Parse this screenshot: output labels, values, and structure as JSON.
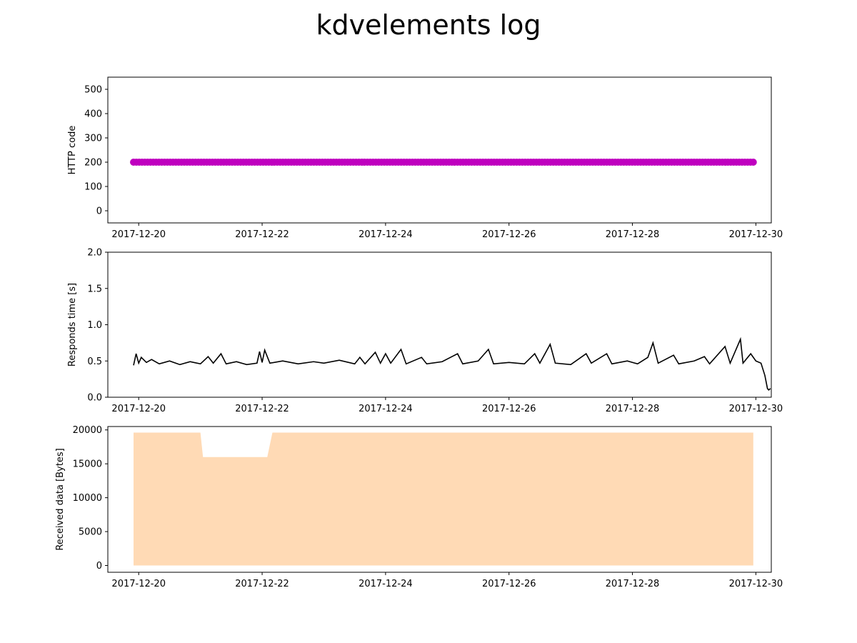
{
  "title": "kdvelements log",
  "chart_data": [
    {
      "type": "scatter",
      "ylabel": "HTTP code",
      "xlabel": "",
      "xlim": [
        "2017-12-19T12:00",
        "2017-12-30T06:00"
      ],
      "ylim": [
        -50,
        550
      ],
      "yticks": [
        0,
        100,
        200,
        300,
        400,
        500
      ],
      "xticks": [
        "2017-12-20",
        "2017-12-22",
        "2017-12-24",
        "2017-12-26",
        "2017-12-28",
        "2017-12-30"
      ],
      "color": "#bf00bf",
      "series": [
        {
          "x_range": [
            "2017-12-19T22:00",
            "2017-12-29T23:00"
          ],
          "value": 200
        }
      ]
    },
    {
      "type": "line",
      "ylabel": "Responds time [s]",
      "xlabel": "",
      "xlim": [
        "2017-12-19T12:00",
        "2017-12-30T06:00"
      ],
      "ylim": [
        0,
        2.0
      ],
      "yticks": [
        0.0,
        0.5,
        1.0,
        1.5,
        2.0
      ],
      "xticks": [
        "2017-12-20",
        "2017-12-22",
        "2017-12-24",
        "2017-12-26",
        "2017-12-28",
        "2017-12-30"
      ],
      "color": "#000000",
      "series": [
        {
          "points": [
            [
              "2017-12-19T22:00",
              0.44
            ],
            [
              "2017-12-19T23:00",
              0.6
            ],
            [
              "2017-12-20T00:00",
              0.47
            ],
            [
              "2017-12-20T01:00",
              0.55
            ],
            [
              "2017-12-20T03:00",
              0.48
            ],
            [
              "2017-12-20T05:00",
              0.52
            ],
            [
              "2017-12-20T08:00",
              0.46
            ],
            [
              "2017-12-20T12:00",
              0.5
            ],
            [
              "2017-12-20T16:00",
              0.45
            ],
            [
              "2017-12-20T20:00",
              0.49
            ],
            [
              "2017-12-21T00:00",
              0.46
            ],
            [
              "2017-12-21T03:00",
              0.56
            ],
            [
              "2017-12-21T05:00",
              0.47
            ],
            [
              "2017-12-21T08:00",
              0.6
            ],
            [
              "2017-12-21T10:00",
              0.46
            ],
            [
              "2017-12-21T14:00",
              0.49
            ],
            [
              "2017-12-21T18:00",
              0.45
            ],
            [
              "2017-12-21T22:00",
              0.47
            ],
            [
              "2017-12-21T23:00",
              0.63
            ],
            [
              "2017-12-22T00:00",
              0.48
            ],
            [
              "2017-12-22T01:00",
              0.65
            ],
            [
              "2017-12-22T03:00",
              0.47
            ],
            [
              "2017-12-22T08:00",
              0.5
            ],
            [
              "2017-12-22T14:00",
              0.46
            ],
            [
              "2017-12-22T20:00",
              0.49
            ],
            [
              "2017-12-23T00:00",
              0.47
            ],
            [
              "2017-12-23T06:00",
              0.51
            ],
            [
              "2017-12-23T12:00",
              0.46
            ],
            [
              "2017-12-23T14:00",
              0.55
            ],
            [
              "2017-12-23T16:00",
              0.46
            ],
            [
              "2017-12-23T20:00",
              0.62
            ],
            [
              "2017-12-23T22:00",
              0.47
            ],
            [
              "2017-12-24T00:00",
              0.6
            ],
            [
              "2017-12-24T02:00",
              0.47
            ],
            [
              "2017-12-24T06:00",
              0.66
            ],
            [
              "2017-12-24T08:00",
              0.46
            ],
            [
              "2017-12-24T14:00",
              0.55
            ],
            [
              "2017-12-24T16:00",
              0.46
            ],
            [
              "2017-12-24T22:00",
              0.49
            ],
            [
              "2017-12-25T04:00",
              0.6
            ],
            [
              "2017-12-25T06:00",
              0.46
            ],
            [
              "2017-12-25T12:00",
              0.5
            ],
            [
              "2017-12-25T16:00",
              0.66
            ],
            [
              "2017-12-25T18:00",
              0.46
            ],
            [
              "2017-12-26T00:00",
              0.48
            ],
            [
              "2017-12-26T06:00",
              0.46
            ],
            [
              "2017-12-26T10:00",
              0.6
            ],
            [
              "2017-12-26T12:00",
              0.47
            ],
            [
              "2017-12-26T16:00",
              0.73
            ],
            [
              "2017-12-26T18:00",
              0.47
            ],
            [
              "2017-12-27T00:00",
              0.45
            ],
            [
              "2017-12-27T06:00",
              0.6
            ],
            [
              "2017-12-27T08:00",
              0.47
            ],
            [
              "2017-12-27T14:00",
              0.6
            ],
            [
              "2017-12-27T16:00",
              0.46
            ],
            [
              "2017-12-27T22:00",
              0.5
            ],
            [
              "2017-12-28T02:00",
              0.46
            ],
            [
              "2017-12-28T06:00",
              0.55
            ],
            [
              "2017-12-28T08:00",
              0.75
            ],
            [
              "2017-12-28T10:00",
              0.47
            ],
            [
              "2017-12-28T16:00",
              0.58
            ],
            [
              "2017-12-28T18:00",
              0.46
            ],
            [
              "2017-12-29T00:00",
              0.5
            ],
            [
              "2017-12-29T04:00",
              0.56
            ],
            [
              "2017-12-29T06:00",
              0.46
            ],
            [
              "2017-12-29T12:00",
              0.7
            ],
            [
              "2017-12-29T14:00",
              0.47
            ],
            [
              "2017-12-29T18:00",
              0.8
            ],
            [
              "2017-12-29T19:00",
              0.47
            ],
            [
              "2017-12-29T22:00",
              0.6
            ],
            [
              "2017-12-30T00:00",
              0.5
            ],
            [
              "2017-12-30T02:00",
              0.47
            ],
            [
              "2017-12-30T03:30",
              0.3
            ],
            [
              "2017-12-30T04:30",
              0.12
            ],
            [
              "2017-12-30T05:00",
              0.1
            ],
            [
              "2017-12-30T05:40",
              0.12
            ]
          ]
        }
      ]
    },
    {
      "type": "area",
      "ylabel": "Received data [Bytes]",
      "xlabel": "",
      "xlim": [
        "2017-12-19T12:00",
        "2017-12-30T06:00"
      ],
      "ylim": [
        -1000,
        20500
      ],
      "yticks": [
        0,
        5000,
        10000,
        15000,
        20000
      ],
      "xticks": [
        "2017-12-20",
        "2017-12-22",
        "2017-12-24",
        "2017-12-26",
        "2017-12-28",
        "2017-12-30"
      ],
      "color": "#ffdab5",
      "series": [
        {
          "points": [
            [
              "2017-12-19T22:00",
              19600
            ],
            [
              "2017-12-21T00:00",
              19600
            ],
            [
              "2017-12-21T01:00",
              16000
            ],
            [
              "2017-12-22T02:00",
              16000
            ],
            [
              "2017-12-22T04:00",
              19600
            ],
            [
              "2017-12-29T23:00",
              19600
            ]
          ]
        }
      ]
    }
  ]
}
